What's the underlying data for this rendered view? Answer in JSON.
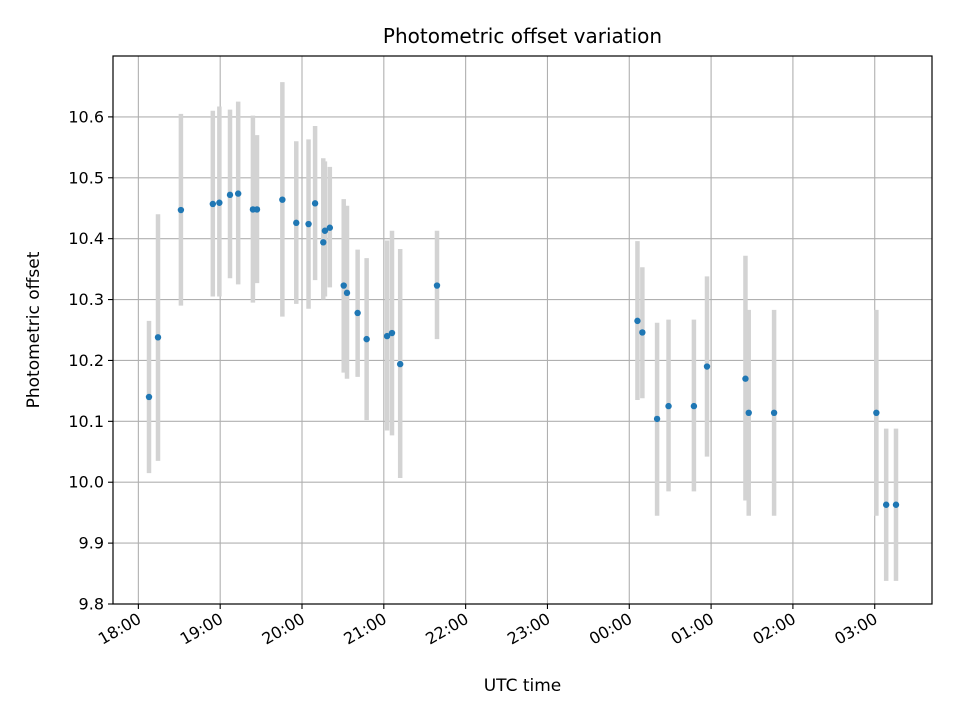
{
  "chart_data": {
    "type": "scatter",
    "title": "Photometric offset variation",
    "xlabel": "UTC time",
    "ylabel": "Photometric offset",
    "x_unit": "hours since 18:00 UTC",
    "xlim": [
      -0.31,
      9.7
    ],
    "ylim": [
      9.8,
      10.7
    ],
    "x_ticks": [
      {
        "value": 0,
        "label": "18:00"
      },
      {
        "value": 1,
        "label": "19:00"
      },
      {
        "value": 2,
        "label": "20:00"
      },
      {
        "value": 3,
        "label": "21:00"
      },
      {
        "value": 4,
        "label": "22:00"
      },
      {
        "value": 5,
        "label": "23:00"
      },
      {
        "value": 6,
        "label": "00:00"
      },
      {
        "value": 7,
        "label": "01:00"
      },
      {
        "value": 8,
        "label": "02:00"
      },
      {
        "value": 9,
        "label": "03:00"
      }
    ],
    "y_ticks": [
      {
        "value": 9.8,
        "label": "9.8"
      },
      {
        "value": 9.9,
        "label": "9.9"
      },
      {
        "value": 10.0,
        "label": "10.0"
      },
      {
        "value": 10.1,
        "label": "10.1"
      },
      {
        "value": 10.2,
        "label": "10.2"
      },
      {
        "value": 10.3,
        "label": "10.3"
      },
      {
        "value": 10.4,
        "label": "10.4"
      },
      {
        "value": 10.5,
        "label": "10.5"
      },
      {
        "value": 10.6,
        "label": "10.6"
      }
    ],
    "grid": true,
    "colors": {
      "point": "#1f77b4",
      "errorbar": "#d3d3d3",
      "grid": "#b0b0b0"
    },
    "points": [
      {
        "x": 0.13,
        "y": 10.14,
        "lo": 10.015,
        "hi": 10.265
      },
      {
        "x": 0.24,
        "y": 10.238,
        "lo": 10.035,
        "hi": 10.44
      },
      {
        "x": 0.52,
        "y": 10.447,
        "lo": 10.29,
        "hi": 10.605
      },
      {
        "x": 0.91,
        "y": 10.457,
        "lo": 10.305,
        "hi": 10.61
      },
      {
        "x": 0.99,
        "y": 10.459,
        "lo": 10.305,
        "hi": 10.617
      },
      {
        "x": 1.12,
        "y": 10.472,
        "lo": 10.335,
        "hi": 10.612
      },
      {
        "x": 1.22,
        "y": 10.474,
        "lo": 10.325,
        "hi": 10.625
      },
      {
        "x": 1.4,
        "y": 10.448,
        "lo": 10.295,
        "hi": 10.602
      },
      {
        "x": 1.45,
        "y": 10.448,
        "lo": 10.327,
        "hi": 10.57
      },
      {
        "x": 1.76,
        "y": 10.464,
        "lo": 10.272,
        "hi": 10.657
      },
      {
        "x": 1.93,
        "y": 10.426,
        "lo": 10.293,
        "hi": 10.56
      },
      {
        "x": 2.08,
        "y": 10.424,
        "lo": 10.285,
        "hi": 10.563
      },
      {
        "x": 2.16,
        "y": 10.458,
        "lo": 10.332,
        "hi": 10.585
      },
      {
        "x": 2.26,
        "y": 10.394,
        "lo": 10.3,
        "hi": 10.532
      },
      {
        "x": 2.28,
        "y": 10.413,
        "lo": 10.305,
        "hi": 10.527
      },
      {
        "x": 2.34,
        "y": 10.418,
        "lo": 10.32,
        "hi": 10.518
      },
      {
        "x": 2.51,
        "y": 10.323,
        "lo": 10.18,
        "hi": 10.465
      },
      {
        "x": 2.55,
        "y": 10.311,
        "lo": 10.17,
        "hi": 10.454
      },
      {
        "x": 2.68,
        "y": 10.278,
        "lo": 10.173,
        "hi": 10.382
      },
      {
        "x": 2.79,
        "y": 10.235,
        "lo": 10.102,
        "hi": 10.368
      },
      {
        "x": 3.04,
        "y": 10.24,
        "lo": 10.085,
        "hi": 10.397
      },
      {
        "x": 3.1,
        "y": 10.245,
        "lo": 10.077,
        "hi": 10.413
      },
      {
        "x": 3.2,
        "y": 10.194,
        "lo": 10.007,
        "hi": 10.383
      },
      {
        "x": 3.65,
        "y": 10.323,
        "lo": 10.235,
        "hi": 10.413
      },
      {
        "x": 6.1,
        "y": 10.265,
        "lo": 10.135,
        "hi": 10.396
      },
      {
        "x": 6.16,
        "y": 10.246,
        "lo": 10.138,
        "hi": 10.353
      },
      {
        "x": 6.34,
        "y": 10.104,
        "lo": 9.945,
        "hi": 10.262
      },
      {
        "x": 6.48,
        "y": 10.125,
        "lo": 9.985,
        "hi": 10.267
      },
      {
        "x": 6.79,
        "y": 10.125,
        "lo": 9.985,
        "hi": 10.267
      },
      {
        "x": 6.95,
        "y": 10.19,
        "lo": 10.042,
        "hi": 10.338
      },
      {
        "x": 7.42,
        "y": 10.17,
        "lo": 9.97,
        "hi": 10.372
      },
      {
        "x": 7.46,
        "y": 10.114,
        "lo": 9.945,
        "hi": 10.283
      },
      {
        "x": 7.77,
        "y": 10.114,
        "lo": 9.945,
        "hi": 10.283
      },
      {
        "x": 9.02,
        "y": 10.114,
        "lo": 9.945,
        "hi": 10.283
      },
      {
        "x": 9.14,
        "y": 9.963,
        "lo": 9.838,
        "hi": 10.088
      },
      {
        "x": 9.26,
        "y": 9.963,
        "lo": 9.838,
        "hi": 10.088
      }
    ]
  }
}
